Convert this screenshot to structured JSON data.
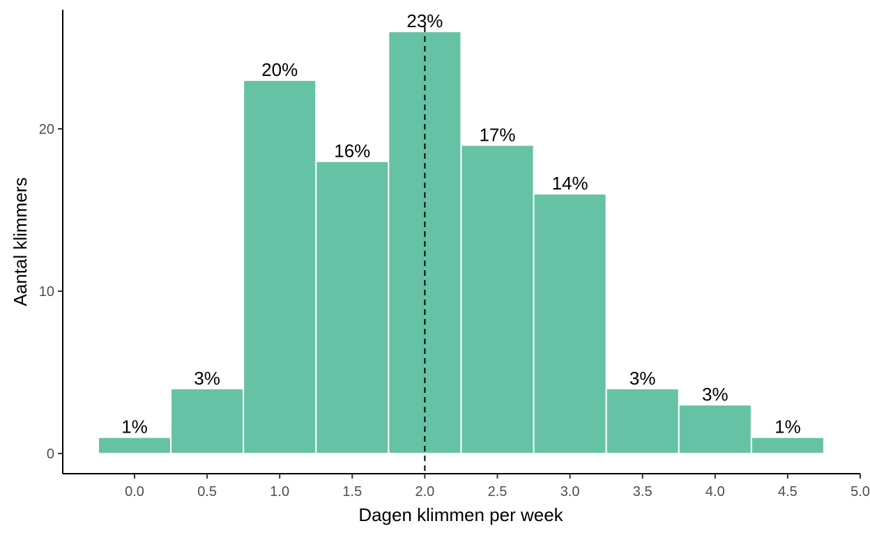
{
  "chart_data": {
    "type": "bar",
    "title": "",
    "xlabel": "Dagen klimmen per week",
    "ylabel": "Aantal klimmers",
    "x": [
      0.0,
      0.5,
      1.0,
      1.5,
      2.0,
      2.5,
      3.0,
      3.5,
      4.0,
      4.5
    ],
    "bin_width": 0.5,
    "values": [
      1,
      4,
      23,
      18,
      26,
      19,
      16,
      4,
      3,
      1
    ],
    "labels": [
      "1%",
      "3%",
      "20%",
      "16%",
      "23%",
      "17%",
      "14%",
      "3%",
      "3%",
      "1%"
    ],
    "xlim": [
      -0.25,
      5.0
    ],
    "ylim": [
      0,
      26
    ],
    "xticks": [
      "0.0",
      "0.5",
      "1.0",
      "1.5",
      "2.0",
      "2.5",
      "3.0",
      "3.5",
      "4.0",
      "4.5",
      "5.0"
    ],
    "yticks": [
      "0",
      "10",
      "20"
    ],
    "reference_line": {
      "x": 2.0,
      "style": "dashed"
    },
    "bar_color": "#66c2a5",
    "grid": false,
    "legend": "none"
  }
}
